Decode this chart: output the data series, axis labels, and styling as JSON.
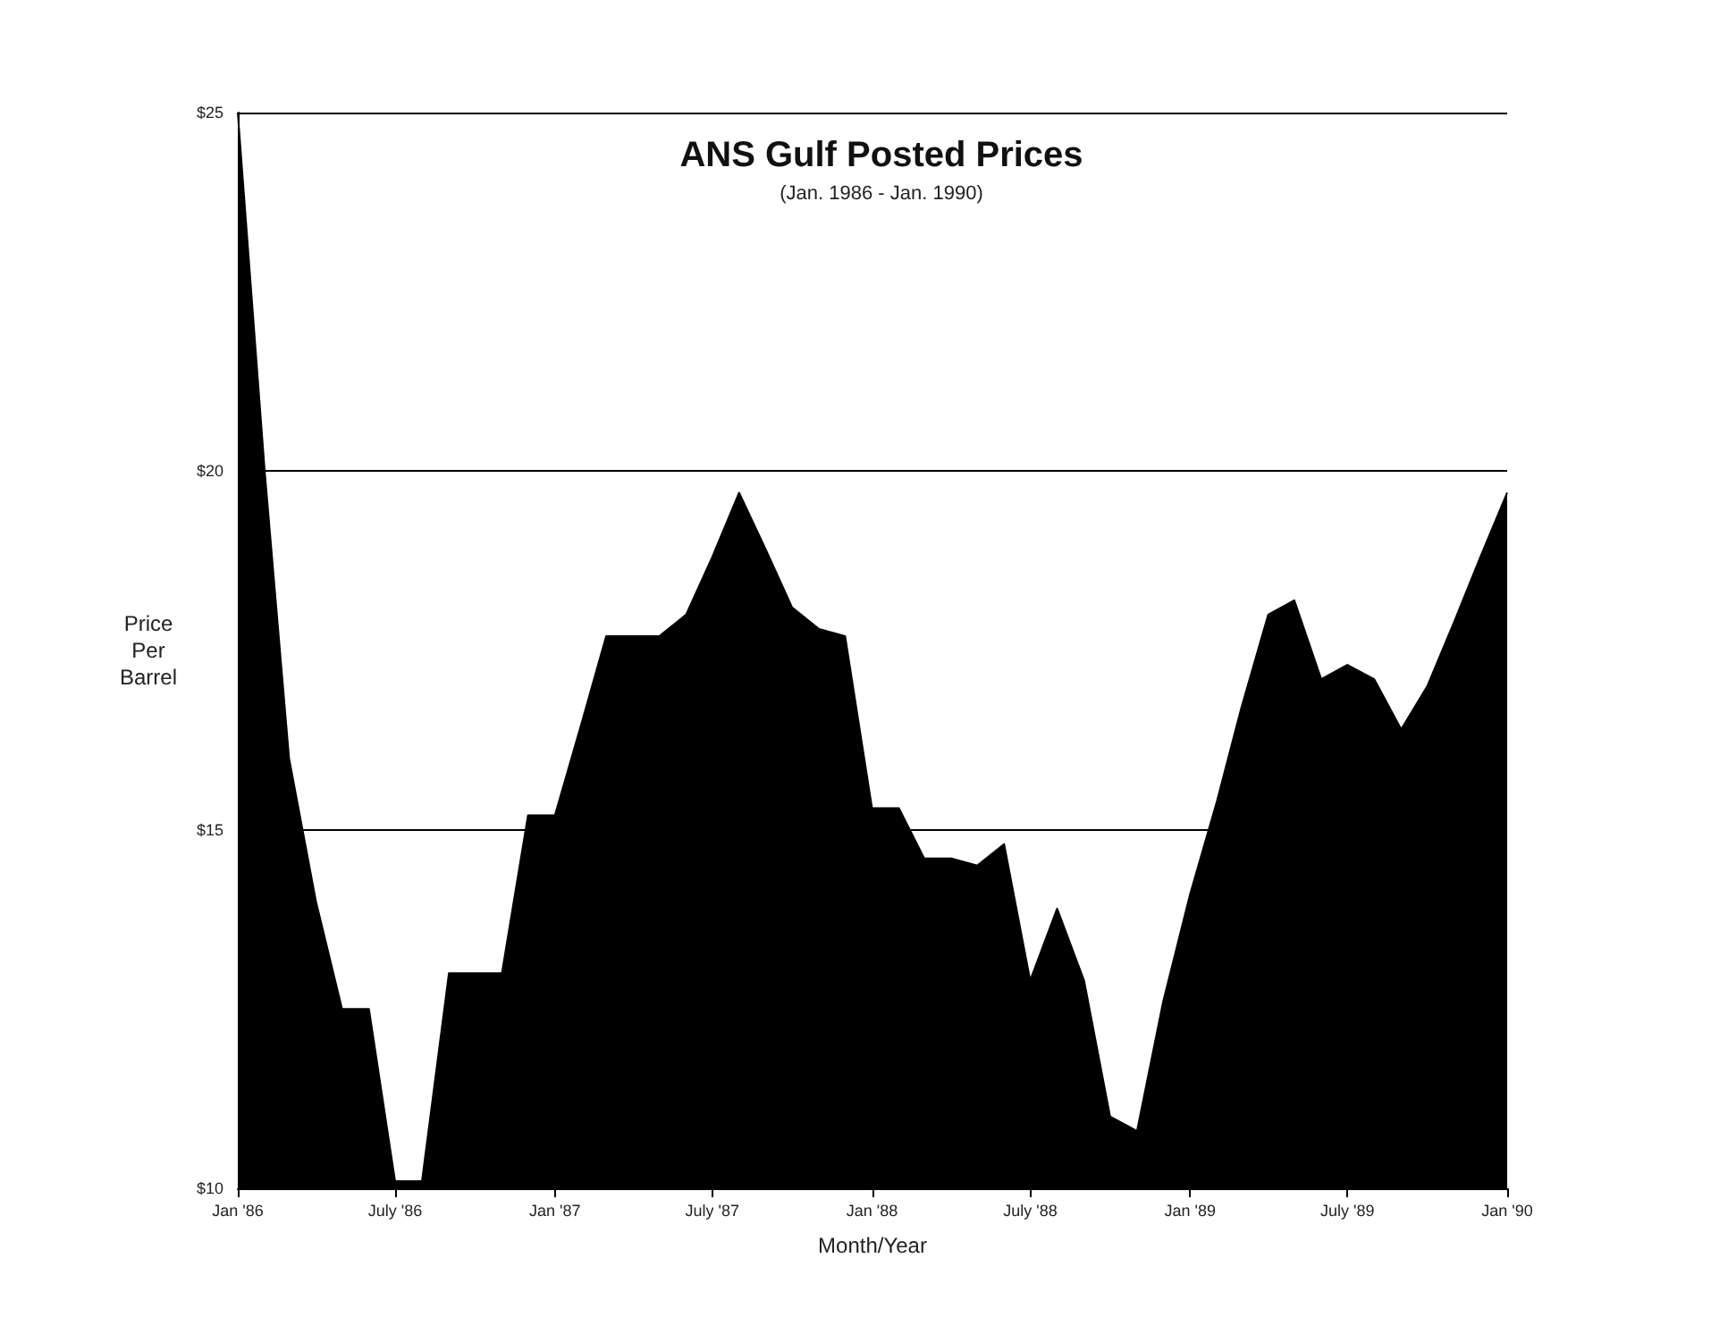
{
  "chart_data": {
    "type": "area",
    "title": "ANS Gulf Posted Prices",
    "subtitle": "(Jan. 1986 - Jan. 1990)",
    "xlabel": "Month/Year",
    "ylabel": "Price Per Barrel",
    "x": [
      "1986-01",
      "1986-02",
      "1986-03",
      "1986-04",
      "1986-05",
      "1986-06",
      "1986-07",
      "1986-08",
      "1986-09",
      "1986-10",
      "1986-11",
      "1986-12",
      "1987-01",
      "1987-02",
      "1987-03",
      "1987-04",
      "1987-05",
      "1987-06",
      "1987-07",
      "1987-08",
      "1987-09",
      "1987-10",
      "1987-11",
      "1987-12",
      "1988-01",
      "1988-02",
      "1988-03",
      "1988-04",
      "1988-05",
      "1988-06",
      "1988-07",
      "1988-08",
      "1988-09",
      "1988-10",
      "1988-11",
      "1988-12",
      "1989-01",
      "1989-02",
      "1989-03",
      "1989-04",
      "1989-05",
      "1989-06",
      "1989-07",
      "1989-08",
      "1989-09",
      "1989-10",
      "1989-11",
      "1989-12",
      "1990-01"
    ],
    "series": [
      {
        "color": "#000000",
        "values": [
          25.0,
          20.0,
          16.0,
          14.0,
          12.5,
          12.5,
          10.1,
          10.1,
          13.0,
          13.0,
          13.0,
          15.2,
          15.2,
          16.5,
          17.7,
          17.7,
          17.7,
          18.0,
          18.8,
          19.7,
          18.9,
          18.1,
          17.8,
          17.7,
          15.3,
          15.3,
          14.6,
          14.6,
          14.5,
          14.8,
          12.9,
          13.9,
          12.9,
          11.0,
          10.8,
          12.6,
          14.1,
          15.4,
          16.7,
          18.0,
          18.2,
          17.1,
          17.3,
          17.1,
          16.4,
          17.0,
          17.9,
          18.8,
          19.7
        ]
      }
    ],
    "xlim": [
      "1986-01",
      "1990-01"
    ],
    "xticks": [
      {
        "value": "1986-01",
        "label": "Jan '86"
      },
      {
        "value": "1986-07",
        "label": "July '86"
      },
      {
        "value": "1987-01",
        "label": "Jan '87"
      },
      {
        "value": "1987-07",
        "label": "July '87"
      },
      {
        "value": "1988-01",
        "label": "Jan '88"
      },
      {
        "value": "1988-07",
        "label": "July '88"
      },
      {
        "value": "1989-01",
        "label": "Jan '89"
      },
      {
        "value": "1989-07",
        "label": "July '89"
      },
      {
        "value": "1990-01",
        "label": "Jan '90"
      }
    ],
    "ylim": [
      10,
      25
    ],
    "yticks": [
      {
        "value": 10,
        "label": "$10"
      },
      {
        "value": 15,
        "label": "$15"
      },
      {
        "value": 20,
        "label": "$20"
      },
      {
        "value": 25,
        "label": "$25"
      }
    ],
    "grid": "y"
  }
}
